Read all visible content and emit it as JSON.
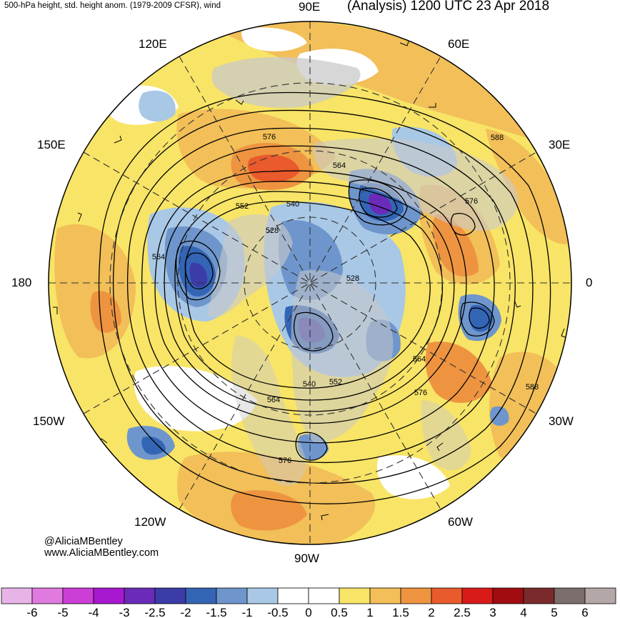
{
  "header": {
    "left": "500-hPa height, std. height anom. (1979-2009 CFSR), wind",
    "right": "(Analysis) 1200 UTC 23 Apr 2018"
  },
  "longitude_labels": {
    "e90": "90E",
    "e60": "60E",
    "e30": "30E",
    "z0": "0",
    "w30": "30W",
    "w60": "60W",
    "w90": "90W",
    "w120": "120W",
    "w150": "150W",
    "d180": "180",
    "e150": "150E",
    "e120": "120E"
  },
  "contour_labels": [
    "576",
    "588",
    "564",
    "552",
    "540",
    "528",
    "564",
    "528",
    "576",
    "564",
    "588",
    "564",
    "540",
    "552",
    "576",
    "576"
  ],
  "credits": {
    "handle": "@AliciaMBentley",
    "site": "www.AliciaMBentley.com"
  },
  "colorbar": {
    "labels": [
      "-6",
      "-5",
      "-4",
      "-3",
      "-2.5",
      "-2",
      "-1.5",
      "-1",
      "-0.5",
      "0",
      "0.5",
      "1",
      "1.5",
      "2",
      "2.5",
      "3",
      "4",
      "5",
      "6"
    ],
    "colors": [
      "#e8b4e8",
      "#e07ae0",
      "#cc3fd6",
      "#a818d0",
      "#6a2cb8",
      "#3c3ca8",
      "#3465b5",
      "#6e96cc",
      "#a9c8e6",
      "#ffffff",
      "#ffffff",
      "#f8e466",
      "#f2bf58",
      "#ee9440",
      "#e95a2c",
      "#d81a18",
      "#a00c10",
      "#7a2a2a",
      "#7d6e6e",
      "#b3a7a7"
    ]
  }
}
